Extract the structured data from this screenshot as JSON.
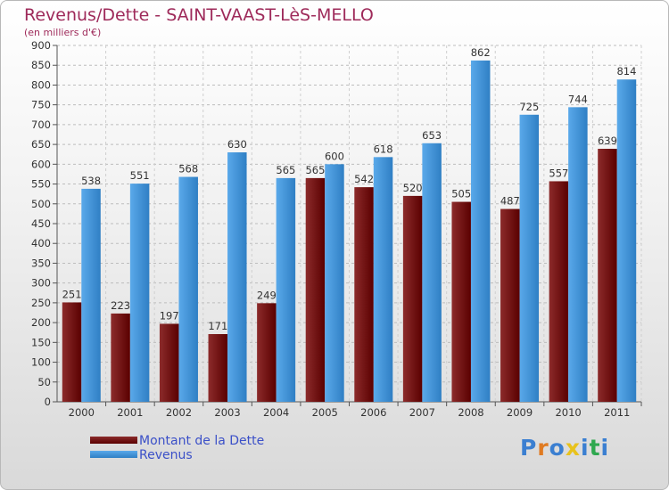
{
  "header": {
    "title": "Revenus/Dette - SAINT-VAAST-LèS-MELLO",
    "subtitle": "(en milliers d'€)"
  },
  "legend": {
    "items": [
      {
        "label": "Montant de la Dette",
        "color": "#6b0a0a"
      },
      {
        "label": "Revenus",
        "color": "#3d8fd6"
      }
    ]
  },
  "logo": {
    "text": "Proxiti"
  },
  "chart_data": {
    "type": "bar",
    "title": "Revenus/Dette - SAINT-VAAST-LèS-MELLO",
    "subtitle": "(en milliers d'€)",
    "categories": [
      "2000",
      "2001",
      "2002",
      "2003",
      "2004",
      "2005",
      "2006",
      "2007",
      "2008",
      "2009",
      "2010",
      "2011"
    ],
    "series": [
      {
        "name": "Montant de la Dette",
        "color": "#6b0a0a",
        "values": [
          251,
          223,
          197,
          171,
          249,
          565,
          542,
          520,
          505,
          487,
          557,
          639
        ]
      },
      {
        "name": "Revenus",
        "color": "#3d8fd6",
        "values": [
          538,
          551,
          568,
          630,
          565,
          600,
          618,
          653,
          862,
          725,
          744,
          814
        ]
      }
    ],
    "ylim": [
      0,
      900
    ],
    "yticks": [
      0,
      50,
      100,
      150,
      200,
      250,
      300,
      350,
      400,
      450,
      500,
      550,
      600,
      650,
      700,
      750,
      800,
      850,
      900
    ],
    "grid": true,
    "legend_position": "bottom-left"
  }
}
